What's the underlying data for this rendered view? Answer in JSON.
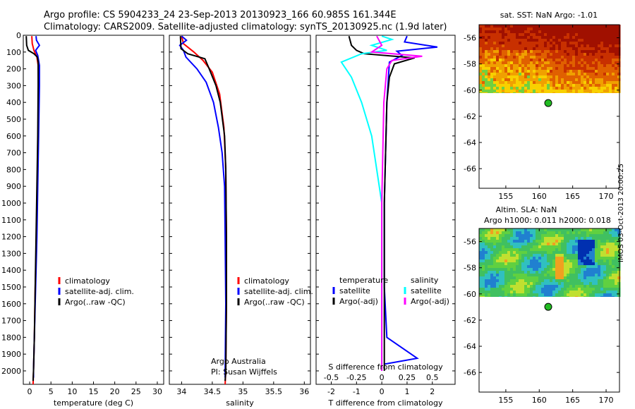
{
  "header": {
    "line1": "Argo profile: CS 5904233_24 23-Sep-2013 20130923_166 60.985S 161.344E",
    "line2": "Climatology: CARS2009. Satellite-adjusted climatology: synTS_20130925.nc (1.9d later)"
  },
  "stamp": "IMOS 03-Oct-2013 20:00:25",
  "colors": {
    "climatology": "#ff0000",
    "satellite": "#0000ff",
    "argo": "#000000",
    "sat_salinity": "#00ffff",
    "argo_salinity": "#ff00ff",
    "float_marker": "#22bb22"
  },
  "chart_data": [
    {
      "id": "temperature",
      "type": "line",
      "xlabel": "temperature (deg C)",
      "xlim": [
        -1.5,
        31.5
      ],
      "xticks": [
        0,
        5,
        10,
        15,
        20,
        25,
        30
      ],
      "ylim": [
        2080,
        0
      ],
      "yticks": [
        0,
        100,
        200,
        300,
        400,
        500,
        600,
        700,
        800,
        900,
        1000,
        1100,
        1200,
        1300,
        1400,
        1500,
        1600,
        1700,
        1800,
        1900,
        2000
      ],
      "legend": [
        "climatology",
        "satellite-adj. clim.",
        "Argo(..raw -QC)"
      ],
      "series": [
        {
          "name": "climatology",
          "color": "#ff0000",
          "points": [
            [
              0.5,
              5
            ],
            [
              0.6,
              50
            ],
            [
              1.0,
              90
            ],
            [
              1.7,
              130
            ],
            [
              2.0,
              180
            ],
            [
              2.1,
              300
            ],
            [
              2.0,
              600
            ],
            [
              1.8,
              900
            ],
            [
              1.6,
              1200
            ],
            [
              1.3,
              1500
            ],
            [
              1.1,
              1800
            ],
            [
              0.9,
              2000
            ],
            [
              0.8,
              2080
            ]
          ]
        },
        {
          "name": "satellite-adj. clim.",
          "color": "#0000ff",
          "points": [
            [
              1.5,
              5
            ],
            [
              1.6,
              30
            ],
            [
              2.3,
              60
            ],
            [
              1.4,
              90
            ],
            [
              1.9,
              120
            ],
            [
              2.3,
              180
            ],
            [
              2.3,
              300
            ],
            [
              2.1,
              600
            ],
            [
              1.9,
              900
            ],
            [
              1.7,
              1200
            ],
            [
              1.4,
              1500
            ],
            [
              1.1,
              1800
            ],
            [
              0.9,
              2000
            ],
            [
              0.9,
              2040
            ]
          ]
        },
        {
          "name": "Argo(..raw -QC)",
          "color": "#000000",
          "points": [
            [
              -0.8,
              5
            ],
            [
              -0.7,
              60
            ],
            [
              -0.3,
              90
            ],
            [
              1.0,
              110
            ],
            [
              1.8,
              130
            ],
            [
              2.0,
              160
            ],
            [
              2.0,
              300
            ],
            [
              1.9,
              600
            ],
            [
              1.7,
              900
            ],
            [
              1.5,
              1200
            ],
            [
              1.3,
              1500
            ],
            [
              1.1,
              1800
            ],
            [
              0.9,
              2000
            ],
            [
              0.8,
              2060
            ]
          ]
        }
      ]
    },
    {
      "id": "salinity",
      "type": "line",
      "xlabel": "salinity",
      "xlim": [
        33.8,
        36.1
      ],
      "xticks": [
        34,
        34.5,
        35,
        35.5,
        36
      ],
      "xticklabels": [
        "34",
        "34.5",
        "35",
        "35.5",
        "36"
      ],
      "ylim": [
        2080,
        0
      ],
      "legend": [
        "climatology",
        "satellite-adj. clim.",
        "Argo(..raw -QC)"
      ],
      "annotation": [
        "Argo Australia",
        "PI: Susan Wijffels"
      ],
      "series": [
        {
          "name": "climatology",
          "color": "#ff0000",
          "points": [
            [
              34.0,
              5
            ],
            [
              34.03,
              50
            ],
            [
              34.2,
              100
            ],
            [
              34.35,
              150
            ],
            [
              34.5,
              220
            ],
            [
              34.62,
              350
            ],
            [
              34.69,
              550
            ],
            [
              34.72,
              800
            ],
            [
              34.73,
              1200
            ],
            [
              34.73,
              1600
            ],
            [
              34.72,
              2000
            ],
            [
              34.71,
              2080
            ]
          ]
        },
        {
          "name": "satellite-adj. clim.",
          "color": "#0000ff",
          "points": [
            [
              34.0,
              5
            ],
            [
              34.08,
              30
            ],
            [
              33.97,
              60
            ],
            [
              34.03,
              90
            ],
            [
              34.07,
              130
            ],
            [
              34.25,
              200
            ],
            [
              34.4,
              280
            ],
            [
              34.52,
              400
            ],
            [
              34.6,
              550
            ],
            [
              34.66,
              700
            ],
            [
              34.7,
              900
            ],
            [
              34.71,
              1200
            ],
            [
              34.72,
              1600
            ],
            [
              34.71,
              2000
            ],
            [
              34.71,
              2040
            ]
          ]
        },
        {
          "name": "Argo(..raw -QC)",
          "color": "#000000",
          "points": [
            [
              33.98,
              5
            ],
            [
              33.99,
              80
            ],
            [
              34.1,
              110
            ],
            [
              34.38,
              140
            ],
            [
              34.45,
              200
            ],
            [
              34.56,
              300
            ],
            [
              34.63,
              400
            ],
            [
              34.7,
              600
            ],
            [
              34.72,
              800
            ],
            [
              34.73,
              1200
            ],
            [
              34.73,
              1600
            ],
            [
              34.72,
              2000
            ],
            [
              34.71,
              2060
            ]
          ]
        }
      ]
    },
    {
      "id": "difference",
      "type": "line",
      "xlabel": "T difference from climatology",
      "xlim": [
        -2.6,
        2.9
      ],
      "xticks": [
        -2,
        -1,
        0,
        1,
        2
      ],
      "top_axis_label": "S difference from climatology",
      "top_xticks": [
        -0.5,
        -0.25,
        0,
        0.25,
        0.5
      ],
      "top_xlim": [
        -0.65,
        0.725
      ],
      "ylim": [
        2080,
        0
      ],
      "legend_temperature": {
        "title": "temperature",
        "items": [
          "satellite",
          "Argo(-adj)"
        ]
      },
      "legend_salinity": {
        "title": "salinity",
        "items": [
          "satellite",
          "Argo(-adj)"
        ]
      },
      "series": [
        {
          "name": "satellite",
          "group": "temperature",
          "color": "#0000ff",
          "points": [
            [
              1.0,
              5
            ],
            [
              0.9,
              40
            ],
            [
              2.2,
              70
            ],
            [
              0.6,
              95
            ],
            [
              0.8,
              120
            ],
            [
              0.3,
              160
            ],
            [
              0.2,
              400
            ],
            [
              0.1,
              1000
            ],
            [
              0.1,
              1500
            ],
            [
              0.2,
              1800
            ],
            [
              1.4,
              1925
            ],
            [
              0.1,
              1960
            ]
          ]
        },
        {
          "name": "Argo(-adj)",
          "group": "temperature",
          "color": "#000000",
          "points": [
            [
              -1.3,
              5
            ],
            [
              -1.2,
              60
            ],
            [
              -1.0,
              90
            ],
            [
              -0.7,
              110
            ],
            [
              1.3,
              135
            ],
            [
              0.5,
              170
            ],
            [
              0.3,
              250
            ],
            [
              0.2,
              400
            ],
            [
              0.1,
              1000
            ],
            [
              0.1,
              1500
            ],
            [
              0.1,
              1800
            ],
            [
              0.1,
              2000
            ]
          ]
        },
        {
          "name": "satellite",
          "group": "salinity",
          "color": "#00ffff",
          "points": [
            [
              0.0,
              5
            ],
            [
              0.1,
              25
            ],
            [
              -0.1,
              60
            ],
            [
              0.05,
              90
            ],
            [
              -0.2,
              110
            ],
            [
              -0.4,
              160
            ],
            [
              -0.3,
              250
            ],
            [
              -0.2,
              400
            ],
            [
              -0.1,
              600
            ],
            [
              0.0,
              1000
            ],
            [
              0.0,
              1500
            ],
            [
              0.0,
              2000
            ]
          ]
        },
        {
          "name": "Argo(-adj)",
          "group": "salinity",
          "color": "#ff00ff",
          "points": [
            [
              -0.05,
              5
            ],
            [
              0.0,
              60
            ],
            [
              -0.1,
              100
            ],
            [
              0.4,
              125
            ],
            [
              0.1,
              150
            ],
            [
              0.05,
              200
            ],
            [
              0.02,
              400
            ],
            [
              0.0,
              1000
            ],
            [
              0.0,
              1500
            ],
            [
              0.0,
              2000
            ]
          ]
        }
      ]
    },
    {
      "id": "sst-map",
      "type": "heatmap",
      "title": "sat. SST: NaN Argo: -1.01",
      "xlim": [
        151,
        172
      ],
      "xticks": [
        155,
        160,
        165,
        170
      ],
      "ylim": [
        -67.5,
        -55
      ],
      "yticks": [
        -56,
        -58,
        -60,
        -62,
        -64,
        -66
      ],
      "data_extent_lat": [
        -60.2,
        -55
      ],
      "float_position": [
        161.344,
        -60.985
      ]
    },
    {
      "id": "sla-map",
      "type": "heatmap",
      "title": "Altim. SLA: NaN",
      "subtitle": "Argo h1000: 0.011 h2000: 0.018",
      "xlim": [
        151,
        172
      ],
      "xticks": [
        155,
        160,
        165,
        170
      ],
      "ylim": [
        -67.5,
        -55
      ],
      "yticks": [
        -56,
        -58,
        -60,
        -62,
        -64,
        -66
      ],
      "data_extent_lat": [
        -60.2,
        -55
      ],
      "float_position": [
        161.344,
        -60.985
      ]
    }
  ]
}
